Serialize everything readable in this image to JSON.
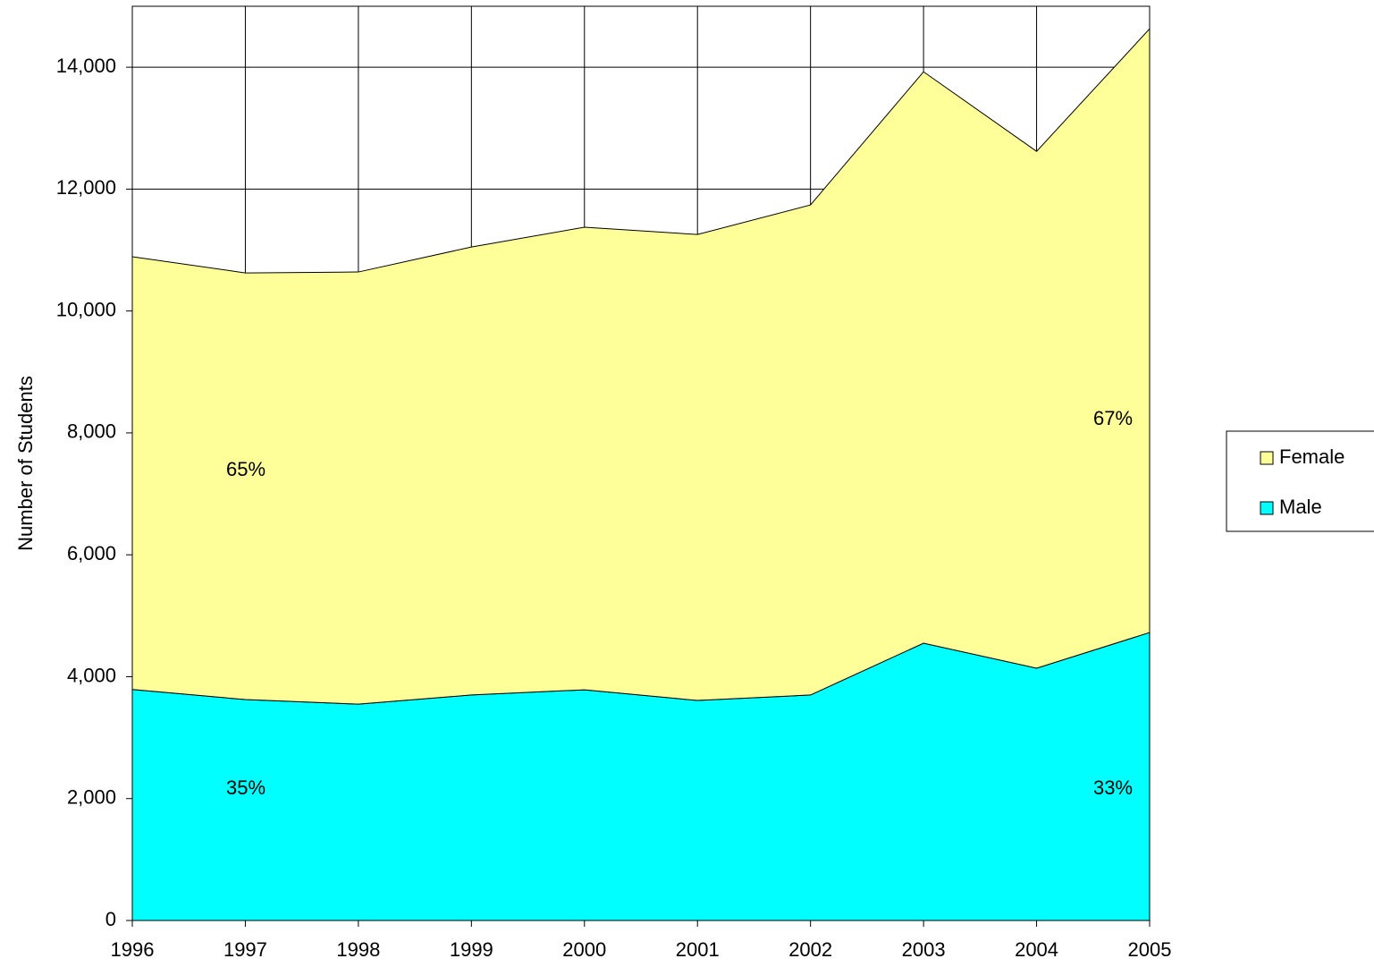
{
  "chart_data": {
    "type": "area",
    "stacked": true,
    "ylabel": "Number of Students",
    "x": [
      1996,
      1997,
      1998,
      1999,
      2000,
      2001,
      2002,
      2003,
      2004,
      2005
    ],
    "xlim": [
      1996,
      2005
    ],
    "xticks": [
      1996,
      1997,
      1998,
      1999,
      2000,
      2001,
      2002,
      2003,
      2004,
      2005
    ],
    "ylim": [
      0,
      15000
    ],
    "yticks": [
      0,
      {
        "value": 2000,
        "label": "2,000"
      },
      {
        "value": 4000,
        "label": "4,000"
      },
      {
        "value": 6000,
        "label": "6,000"
      },
      {
        "value": 8000,
        "label": "8,000"
      },
      {
        "value": 10000,
        "label": "10,000"
      },
      {
        "value": 12000,
        "label": "12,000"
      },
      {
        "value": 14000,
        "label": "14,000"
      }
    ],
    "grid": true,
    "legend": "right",
    "series": [
      {
        "name": "Male",
        "color": "#00ffff",
        "values": [
          3790,
          3625,
          3550,
          3700,
          3785,
          3610,
          3700,
          4550,
          4140,
          4725
        ]
      },
      {
        "name": "Female",
        "color": "#ffff99",
        "values": [
          7100,
          7000,
          7090,
          7350,
          7590,
          7645,
          8040,
          9375,
          8480,
          9905
        ]
      }
    ],
    "annotations": [
      "65%",
      "35%",
      "67%",
      "33%"
    ]
  }
}
